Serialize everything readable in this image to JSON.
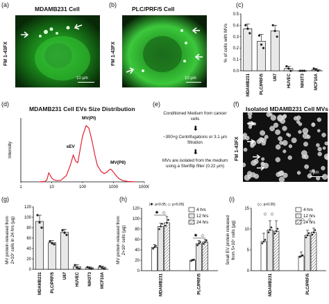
{
  "panels": {
    "a": {
      "label": "(a)",
      "title": "MDAMB231 Cell",
      "side": "FM 1-43FX",
      "scale": "10 µm"
    },
    "b": {
      "label": "(b)",
      "title": "PLC/PRF/5 Cell",
      "side": "FM 1-43FX",
      "scale": "10 µm"
    },
    "c": {
      "label": "(c)"
    },
    "d": {
      "label": "(d)",
      "title": "MDAMB231 Cell EVs Size Distribution"
    },
    "e": {
      "label": "(e)",
      "step1": "Conditioned Medium from cancer cells",
      "step2": "~300×g Centrifugations or 3.1 µm filtration",
      "step3": "MVs are isolated from the medium using a Steriflip filter (0.22 µm)"
    },
    "f": {
      "label": "(f)",
      "title": "Isolated MDAMB231 Cell MVs",
      "side": "FM 1-43FX",
      "scale": "5 µm"
    },
    "g": {
      "label": "(g)"
    },
    "h": {
      "label": "(h)",
      "annotation": "(✱: p<0.05; ◇: p>0.05)"
    },
    "i": {
      "label": "(i)",
      "annotation": "(◇: p>0.05)"
    }
  },
  "colors": {
    "micro_green": "#3fd13f",
    "bar_fill": "#e8e8e8",
    "dot": "#222222",
    "curve": "#e0202f"
  },
  "chart_data": [
    {
      "id": "c",
      "type": "bar",
      "ylabel": "% of cells with MVs",
      "ylim": [
        0,
        0.5
      ],
      "yticks": [
        0.0,
        0.1,
        0.2,
        0.3,
        0.4,
        0.5
      ],
      "ytick_labels": [
        "0.0",
        "0.1",
        "0.2",
        "0.3",
        "0.4",
        "0.5"
      ],
      "categories": [
        "MDAMB231",
        "PLC/PRF/5",
        "U87",
        "HUVEC",
        "NIH3T3",
        "MCF10A"
      ],
      "values": [
        0.37,
        0.26,
        0.35,
        0.02,
        0.0,
        0.01
      ],
      "errors": [
        0.04,
        0.06,
        0.05,
        0.02,
        0.0,
        0.01
      ],
      "points": [
        [
          0.4,
          0.37,
          0.33
        ],
        [
          0.31,
          0.23,
          0.2
        ],
        [
          0.4,
          0.35,
          0.3
        ],
        [
          0.04,
          0.02,
          0.0
        ],
        [
          0.0,
          0.0,
          0.0
        ],
        [
          0.02,
          0.01,
          0.0
        ]
      ]
    },
    {
      "id": "d",
      "type": "line",
      "xlabel": "",
      "ylabel": "Intensity",
      "xscale": "log",
      "xlim": [
        1,
        10000
      ],
      "xtick_labels": [
        "1",
        "10",
        "100",
        "1000",
        "10000"
      ],
      "x": [
        4,
        6,
        7,
        8,
        9,
        10,
        12,
        15,
        20,
        30,
        40,
        50,
        60,
        70,
        80,
        100,
        130,
        160,
        200,
        250,
        300,
        400,
        500,
        600,
        700,
        800,
        900,
        1000,
        1200,
        1500,
        2000,
        3000,
        5000
      ],
      "y": [
        0.02,
        0.05,
        0.3,
        1.4,
        1.0,
        0.6,
        0.3,
        0.2,
        0.25,
        1.0,
        2.6,
        4.2,
        3.2,
        3.0,
        4.6,
        7.2,
        8.8,
        8.4,
        6.5,
        4.2,
        2.6,
        1.6,
        1.3,
        1.5,
        1.8,
        2.0,
        1.8,
        1.5,
        1.0,
        0.5,
        0.2,
        0.05,
        0.0
      ],
      "annotations": [
        "MV(PI)",
        "sEV",
        "MV(PII)"
      ]
    },
    {
      "id": "g",
      "type": "bar",
      "ylabel_line1": "MV protein released from",
      "ylabel_line2": "2×10⁷ cells in 24 hrs (µg)",
      "ylim": [
        0,
        120
      ],
      "yticks": [
        0,
        20,
        40,
        60,
        80,
        100,
        120
      ],
      "categories": [
        "MDAMB231",
        "PLC/PRF/5",
        "U87",
        "HUVEC",
        "NIH3T3",
        "MCF10A"
      ],
      "values": [
        92,
        51,
        71,
        5,
        3,
        4
      ],
      "errors": [
        12,
        4,
        6,
        4,
        2,
        2
      ],
      "points": [
        [
          104,
          90,
          80
        ],
        [
          54,
          50,
          48
        ],
        [
          75,
          70,
          66
        ],
        [
          8,
          3,
          1
        ],
        [
          4,
          2,
          1
        ],
        [
          6,
          3,
          1
        ]
      ]
    },
    {
      "id": "h",
      "type": "bar",
      "ylabel_line1": "MV protein released from",
      "ylabel_line2": "2×10⁷ cells (µg)",
      "ylim": [
        0,
        120
      ],
      "yticks": [
        0,
        20,
        40,
        60,
        80,
        100,
        120
      ],
      "categories": [
        "MDAMB231",
        "PLC/PRF/5"
      ],
      "series": [
        {
          "name": "4 hrs",
          "values": [
            45,
            20
          ],
          "errors": [
            5,
            2
          ],
          "pattern": "solid"
        },
        {
          "name": "12 hrs",
          "values": [
            85,
            52
          ],
          "errors": [
            6,
            6
          ],
          "pattern": "light"
        },
        {
          "name": "24 hrs",
          "values": [
            92,
            55
          ],
          "errors": [
            12,
            5
          ],
          "pattern": "hatch"
        }
      ]
    },
    {
      "id": "i",
      "type": "bar",
      "ylabel_line1": "Small EV protein released",
      "ylabel_line2": "from 5×10⁷ cells (µg)",
      "ylim": [
        0,
        15
      ],
      "yticks": [
        0,
        5,
        10,
        15
      ],
      "categories": [
        "MDAMB231",
        "PLC/PRF/5"
      ],
      "series": [
        {
          "name": "4 hrs",
          "values": [
            7,
            3.5
          ],
          "errors": [
            2,
            1
          ],
          "pattern": "solid"
        },
        {
          "name": "12 hrs",
          "values": [
            9.8,
            8.5
          ],
          "errors": [
            2.2,
            1.2
          ],
          "pattern": "light"
        },
        {
          "name": "24 hrs",
          "values": [
            9.5,
            9.2
          ],
          "errors": [
            2.5,
            1
          ],
          "pattern": "hatch"
        }
      ]
    }
  ]
}
